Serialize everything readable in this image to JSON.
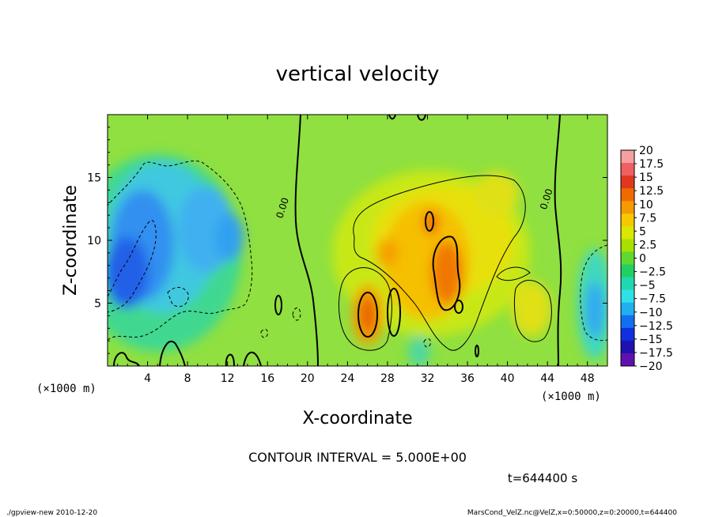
{
  "chart_data": {
    "type": "heatmap",
    "title": "vertical velocity",
    "xlabel": "X-coordinate",
    "ylabel": "Z-coordinate",
    "x_unit_label": "(×1000 m)",
    "xlim": [
      0,
      50
    ],
    "ylim": [
      0,
      20
    ],
    "x_ticks": [
      {
        "value": 4,
        "label": "4"
      },
      {
        "value": 8,
        "label": "8"
      },
      {
        "value": 12,
        "label": "12"
      },
      {
        "value": 16,
        "label": "16"
      },
      {
        "value": 20,
        "label": "20"
      },
      {
        "value": 24,
        "label": "24"
      },
      {
        "value": 28,
        "label": "28"
      },
      {
        "value": 32,
        "label": "32"
      },
      {
        "value": 36,
        "label": "36"
      },
      {
        "value": 40,
        "label": "40"
      },
      {
        "value": 44,
        "label": "44"
      },
      {
        "value": 48,
        "label": "48"
      }
    ],
    "y_ticks": [
      {
        "value": 5,
        "label": "5"
      },
      {
        "value": 10,
        "label": "10"
      },
      {
        "value": 15,
        "label": "15"
      }
    ],
    "colorbar": {
      "levels": [
        "20",
        "17.5",
        "15",
        "12.5",
        "10",
        "7.5",
        "5",
        "2.5",
        "0",
        "−2.5",
        "−5",
        "−7.5",
        "−10",
        "−12.5",
        "−15",
        "−17.5",
        "−20"
      ],
      "colors": [
        "#f5a0a0",
        "#ef6060",
        "#e03820",
        "#f06a00",
        "#f59a00",
        "#f5c800",
        "#d8e800",
        "#a8e000",
        "#60d830",
        "#20d060",
        "#20d8b0",
        "#30e0e8",
        "#20b0f0",
        "#1070f0",
        "#1030e0",
        "#2010b0",
        "#6010b0"
      ]
    },
    "contour_labels": [
      {
        "x": 17.8,
        "z": 12.5,
        "text": "0.00"
      },
      {
        "x": 44.2,
        "z": 13.2,
        "text": "0.00"
      }
    ],
    "contour_interval_text": "CONTOUR INTERVAL = 5.000E+00",
    "time_text": "t=644400 s",
    "footer_left": "./gpview-new  2010-12-20",
    "footer_right": "MarsCond_VelZ.nc@VelZ,x=0:50000,z=0:20000,t=644400"
  }
}
